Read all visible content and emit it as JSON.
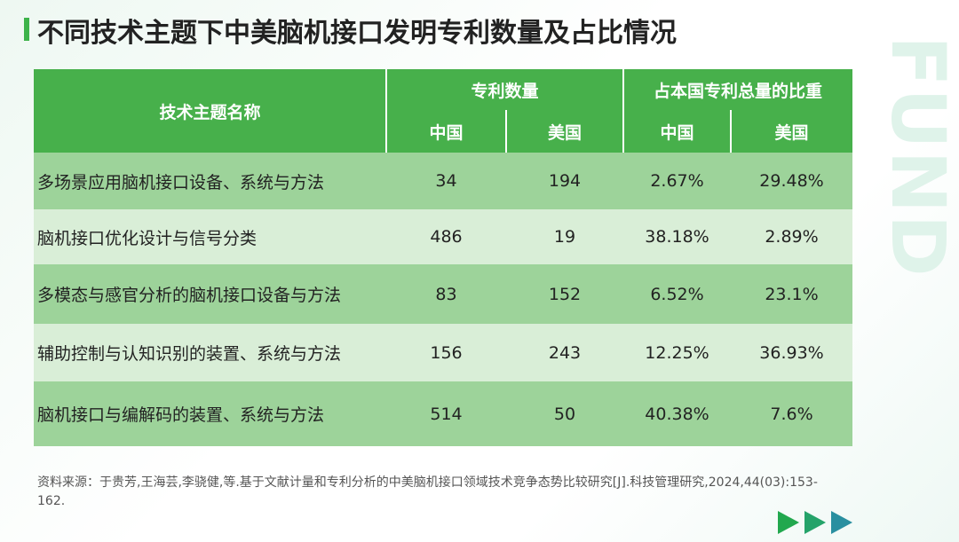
{
  "header": {
    "title": "不同技术主题下中美脑机接口发明专利数量及占比情况"
  },
  "watermark": "FREES FUND",
  "table": {
    "header_top": [
      "技术主题名称",
      "专利数量",
      "占本国专利总量的比重"
    ],
    "header_sub": [
      "中国",
      "美国",
      "中国",
      "美国"
    ],
    "rows": [
      [
        "多场景应用脑机接口设备、系统与方法",
        34,
        194,
        "2.67%",
        "29.48%"
      ],
      [
        "脑机接口优化设计与信号分类",
        486,
        19,
        "38.18%",
        "2.89%"
      ],
      [
        "多模态与感官分析的脑机接口设备与方法",
        83,
        152,
        "6.52%",
        "23.1%"
      ],
      [
        "辅助控制与认知识别的装置、系统与方法",
        156,
        243,
        "12.25%",
        "36.93%"
      ],
      [
        "脑机接口与编解码的装置、系统与方法",
        514,
        50,
        "40.38%",
        "7.6%"
      ]
    ]
  },
  "source": "资料来源：于贵芳,王海芸,李骁健,等.基于文献计量和专利分析的中美脑机接口领域技术竞争态势比较研究[J].科技管理研究,2024,44(03):153-162."
}
